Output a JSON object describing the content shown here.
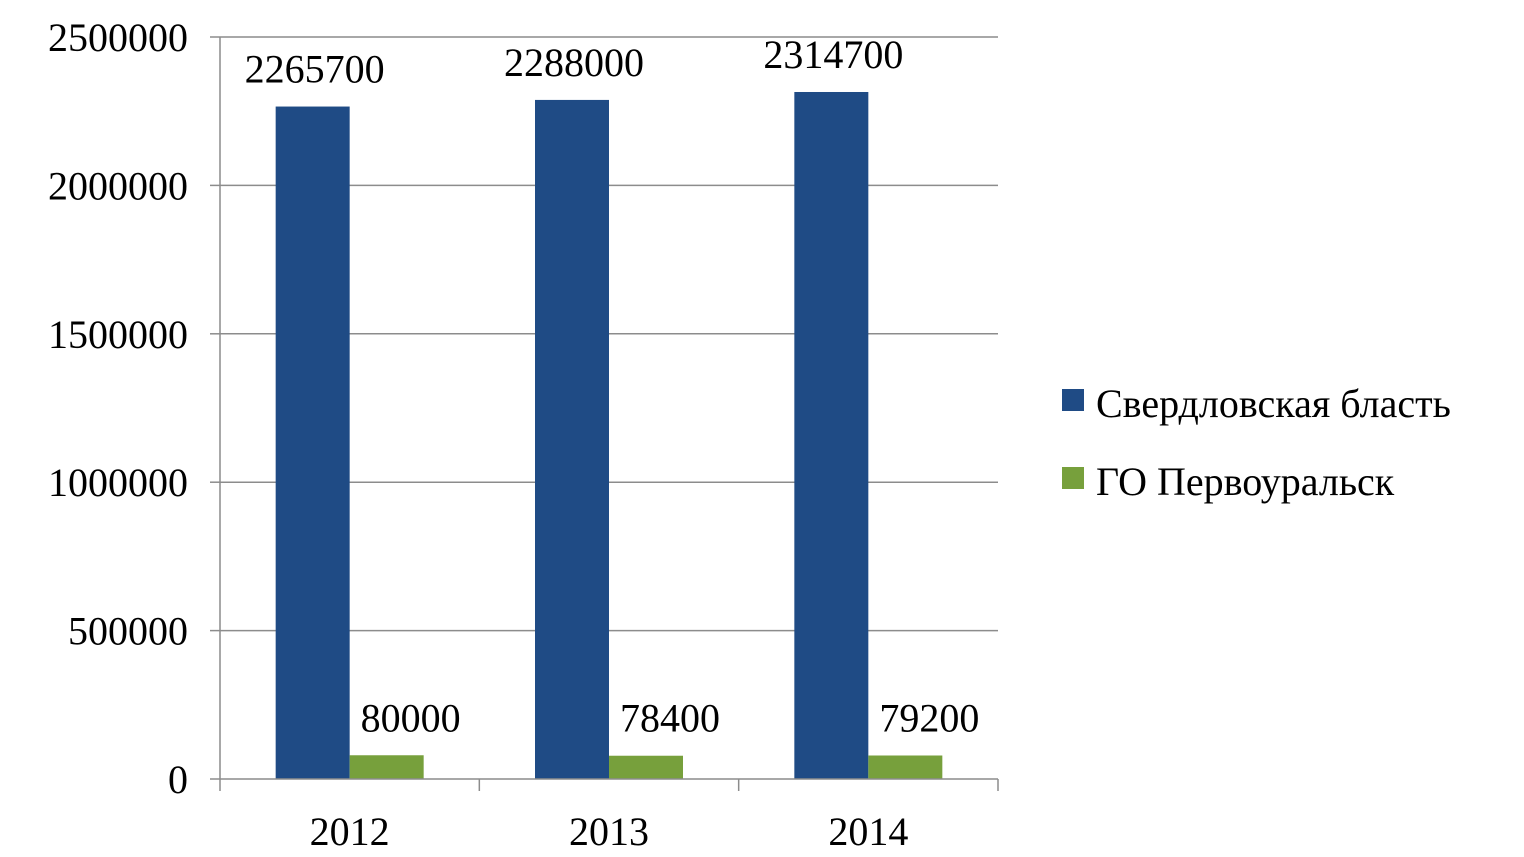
{
  "chart_data": {
    "type": "bar",
    "categories": [
      "2012",
      "2013",
      "2014"
    ],
    "series": [
      {
        "name": "Свердловская бласть",
        "values": [
          2265700,
          2288000,
          2314700
        ],
        "color": "#1f4b85",
        "labels": [
          "2265700",
          "2288000",
          "2314700"
        ]
      },
      {
        "name": "ГО Первоуральск",
        "values": [
          80000,
          78400,
          79200
        ],
        "color": "#77a03c",
        "labels": [
          "80000",
          "78400",
          "79200"
        ]
      }
    ],
    "yticks": [
      "0",
      "500000",
      "1000000",
      "1500000",
      "2000000",
      "2500000"
    ],
    "ylim": [
      0,
      2500000
    ],
    "grid": true,
    "legend": "right"
  }
}
